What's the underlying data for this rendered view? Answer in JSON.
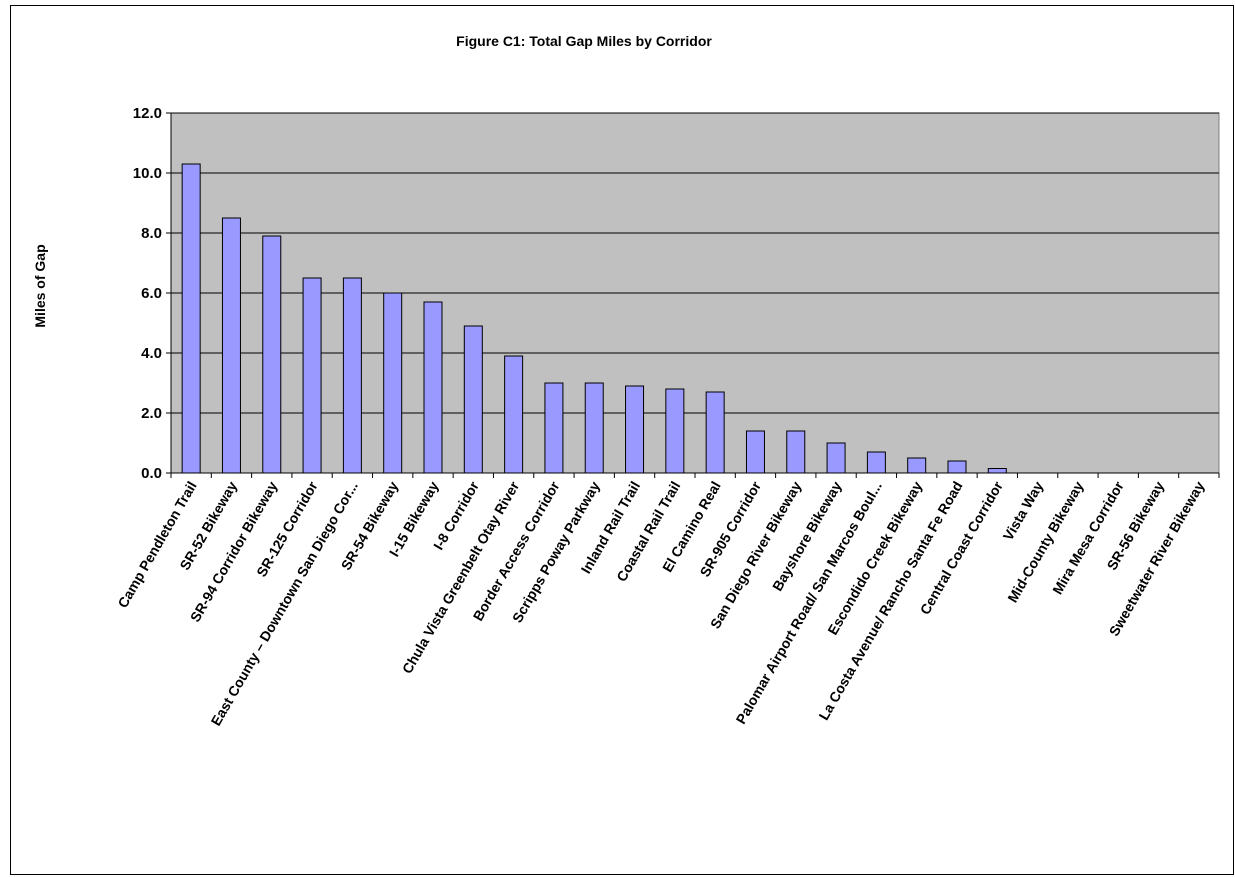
{
  "chart_data": {
    "type": "bar",
    "title": "Figure C1:  Total Gap Miles by Corridor",
    "xlabel": "",
    "ylabel": "Miles of Gap",
    "ylim": [
      0,
      12
    ],
    "y_ticks": [
      "0.0",
      "2.0",
      "4.0",
      "6.0",
      "8.0",
      "10.0",
      "12.0"
    ],
    "grid": true,
    "legend": "none",
    "categories": [
      "Camp Pendleton Trail",
      "SR-52 Bikeway",
      "SR-94 Corridor Bikeway",
      "SR-125 Corridor",
      "East County – Downtown San Diego Cor...",
      "SR-54 Bikeway",
      "I-15 Bikeway",
      "I-8 Corridor",
      "Chula Vista Greenbelt Otay River",
      "Border Access Corridor",
      "Scripps Poway Parkway",
      "Inland Rail Trail",
      "Coastal Rail Trail",
      "El Camino Real",
      "SR-905 Corridor",
      "San Diego River Bikeway",
      "Bayshore Bikeway",
      "Palomar Airport Road/ San Marcos Boul...",
      "Escondido Creek Bikeway",
      "La Costa Avenue/ Rancho Santa Fe Road",
      "Central Coast Corridor",
      "Vista Way",
      "Mid-County Bikeway",
      "Mira Mesa Corridor",
      "SR-56 Bikeway",
      "Sweetwater River Bikeway"
    ],
    "values": [
      10.3,
      8.5,
      7.9,
      6.5,
      6.5,
      6.0,
      5.7,
      4.9,
      3.9,
      3.0,
      3.0,
      2.9,
      2.8,
      2.7,
      1.4,
      1.4,
      1.0,
      0.7,
      0.5,
      0.4,
      0.15,
      0,
      0,
      0,
      0,
      0
    ],
    "colors": {
      "plot_bg": "#c0c0c0",
      "bar_fill": "#9999ff",
      "bar_stroke": "#000000",
      "grid": "#000000"
    }
  }
}
